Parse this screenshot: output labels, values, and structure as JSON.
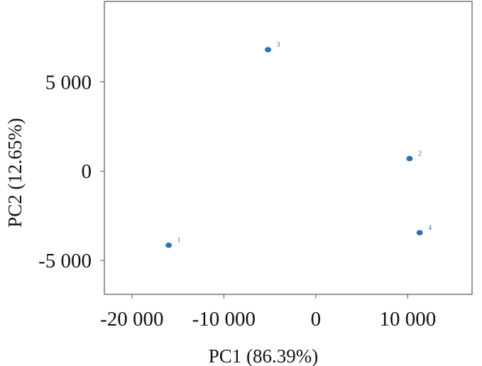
{
  "chart_data": {
    "type": "scatter",
    "title": "",
    "xlabel": "PC1 (86.39%)",
    "ylabel": "PC2 (12.65%)",
    "xlim": [
      -23000,
      17000
    ],
    "ylim": [
      -6900,
      9500
    ],
    "x_ticks": [
      -20000,
      -10000,
      0,
      10000
    ],
    "x_tick_labels": [
      "-20 000",
      "-10 000",
      "0",
      "10 000"
    ],
    "y_ticks": [
      -5000,
      0,
      5000
    ],
    "y_tick_labels": [
      "-5 000",
      "0",
      "5 000"
    ],
    "grid": false,
    "legend": "none",
    "point_color": "#2f6fb5",
    "series": [
      {
        "points": [
          {
            "label": "1",
            "x": -16000,
            "y": -4150
          },
          {
            "label": "2",
            "x": 10200,
            "y": 700
          },
          {
            "label": "3",
            "x": -5200,
            "y": 6800
          },
          {
            "label": "4",
            "x": 11300,
            "y": -3450
          }
        ]
      }
    ]
  }
}
